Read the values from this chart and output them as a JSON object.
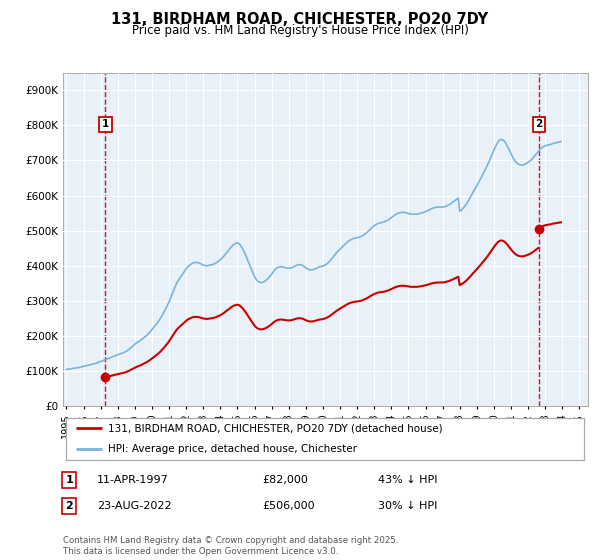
{
  "title": "131, BIRDHAM ROAD, CHICHESTER, PO20 7DY",
  "subtitle": "Price paid vs. HM Land Registry's House Price Index (HPI)",
  "background_color": "#dce9f5",
  "plot_bg_color": "#e8f0f8",
  "grid_color": "#ffffff",
  "hpi_color": "#7ab4d8",
  "price_color": "#cc0000",
  "dashed_line_color": "#cc0000",
  "ylim": [
    0,
    950000
  ],
  "yticks": [
    0,
    100000,
    200000,
    300000,
    400000,
    500000,
    600000,
    700000,
    800000,
    900000
  ],
  "ytick_labels": [
    "£0",
    "£100K",
    "£200K",
    "£300K",
    "£400K",
    "£500K",
    "£600K",
    "£700K",
    "£800K",
    "£900K"
  ],
  "xlim_start": 1994.8,
  "xlim_end": 2025.5,
  "xtick_years": [
    1995,
    1996,
    1997,
    1998,
    1999,
    2000,
    2001,
    2002,
    2003,
    2004,
    2005,
    2006,
    2007,
    2008,
    2009,
    2010,
    2011,
    2012,
    2013,
    2014,
    2015,
    2016,
    2017,
    2018,
    2019,
    2020,
    2021,
    2022,
    2023,
    2024,
    2025
  ],
  "transaction1_year": 1997.28,
  "transaction1_price": 82000,
  "transaction2_year": 2022.64,
  "transaction2_price": 506000,
  "legend_line1": "131, BIRDHAM ROAD, CHICHESTER, PO20 7DY (detached house)",
  "legend_line2": "HPI: Average price, detached house, Chichester",
  "footnote": "Contains HM Land Registry data © Crown copyright and database right 2025.\nThis data is licensed under the Open Government Licence v3.0.",
  "hpi_monthly": {
    "start_year": 1995.0,
    "step": 0.08333,
    "values": [
      104000,
      105000,
      105500,
      106000,
      107000,
      107500,
      108000,
      108500,
      109000,
      110000,
      111000,
      112000,
      113000,
      114000,
      115000,
      116000,
      117000,
      118000,
      119000,
      120000,
      121000,
      122000,
      124000,
      126000,
      127000,
      128500,
      130000,
      131500,
      133000,
      134500,
      136000,
      138000,
      140000,
      141500,
      143000,
      144500,
      146000,
      147500,
      149000,
      150500,
      152000,
      154000,
      156000,
      159000,
      162000,
      165500,
      169000,
      172500,
      176000,
      179000,
      182000,
      184500,
      187000,
      190500,
      194000,
      197000,
      200000,
      204000,
      208000,
      213000,
      218000,
      223000,
      228000,
      233000,
      238000,
      244000,
      250000,
      257000,
      264000,
      272000,
      280000,
      288000,
      297000,
      307000,
      317000,
      327000,
      337000,
      347000,
      355000,
      361000,
      367000,
      373000,
      379000,
      385000,
      391000,
      396000,
      400000,
      403000,
      406000,
      408000,
      409000,
      409000,
      409000,
      408000,
      406000,
      404000,
      402000,
      401000,
      400000,
      400000,
      401000,
      402000,
      403000,
      404000,
      406000,
      408000,
      411000,
      414000,
      417000,
      421000,
      425000,
      430000,
      435000,
      440000,
      445000,
      450000,
      455000,
      459000,
      462000,
      464000,
      465000,
      463000,
      459000,
      453000,
      446000,
      437000,
      428000,
      418000,
      408000,
      398000,
      388000,
      378000,
      369000,
      362000,
      357000,
      354000,
      352000,
      352000,
      353000,
      355000,
      358000,
      362000,
      366000,
      371000,
      376000,
      382000,
      387000,
      391000,
      394000,
      396000,
      397000,
      397000,
      396000,
      395000,
      394000,
      393000,
      393000,
      393000,
      394000,
      396000,
      398000,
      400000,
      402000,
      403000,
      403000,
      402000,
      400000,
      397000,
      394000,
      391000,
      389000,
      388000,
      388000,
      389000,
      390000,
      392000,
      394000,
      396000,
      397000,
      398000,
      399000,
      401000,
      403000,
      406000,
      410000,
      414000,
      419000,
      424000,
      429000,
      434000,
      439000,
      443000,
      447000,
      451000,
      455000,
      459000,
      463000,
      467000,
      470000,
      473000,
      475000,
      477000,
      478000,
      479000,
      480000,
      481000,
      482000,
      484000,
      486000,
      489000,
      492000,
      495000,
      499000,
      503000,
      507000,
      511000,
      514000,
      517000,
      519000,
      521000,
      522000,
      523000,
      524000,
      525000,
      527000,
      529000,
      531000,
      534000,
      537000,
      540000,
      543000,
      546000,
      548000,
      550000,
      551000,
      552000,
      552000,
      552000,
      551000,
      550000,
      549000,
      548000,
      547000,
      547000,
      547000,
      547000,
      547000,
      548000,
      549000,
      550000,
      551000,
      553000,
      554000,
      556000,
      558000,
      560000,
      562000,
      564000,
      565000,
      566000,
      567000,
      567000,
      567000,
      567000,
      567000,
      568000,
      569000,
      571000,
      573000,
      575000,
      578000,
      581000,
      584000,
      587000,
      590000,
      593000,
      555000,
      558000,
      562000,
      567000,
      572000,
      578000,
      585000,
      592000,
      599000,
      607000,
      614000,
      621000,
      628000,
      636000,
      643000,
      651000,
      659000,
      667000,
      675000,
      683000,
      692000,
      701000,
      711000,
      720000,
      730000,
      739000,
      747000,
      754000,
      758000,
      760000,
      759000,
      756000,
      751000,
      744000,
      736000,
      727000,
      719000,
      711000,
      704000,
      698000,
      693000,
      690000,
      688000,
      687000,
      687000,
      688000,
      690000,
      692000,
      695000,
      698000,
      701000,
      705000,
      710000,
      715000,
      720000,
      725000,
      730000,
      734000,
      737000,
      740000,
      742000,
      743000,
      744000,
      745000,
      746000,
      748000,
      749000,
      750000,
      751000,
      752000,
      753000,
      754000
    ]
  }
}
